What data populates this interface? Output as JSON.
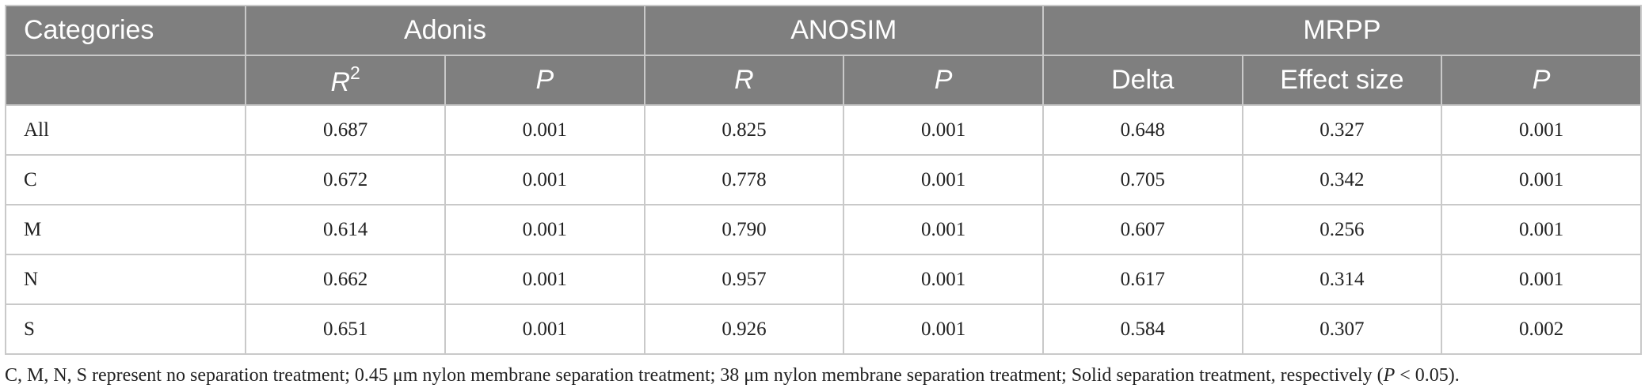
{
  "table": {
    "group_headers": {
      "categories": "Categories",
      "adonis": "Adonis",
      "anosim": "ANOSIM",
      "mrpp": "MRPP"
    },
    "sub_headers": {
      "adonis_r2_base": "R",
      "adonis_r2_sup": "2",
      "adonis_p": "P",
      "anosim_r": "R",
      "anosim_p": "P",
      "mrpp_delta": "Delta",
      "mrpp_effect": "Effect size",
      "mrpp_p": "P"
    },
    "rows": [
      {
        "category": "All",
        "adonis_r2": "0.687",
        "adonis_p": "0.001",
        "anosim_r": "0.825",
        "anosim_p": "0.001",
        "mrpp_delta": "0.648",
        "mrpp_effect": "0.327",
        "mrpp_p": "0.001"
      },
      {
        "category": "C",
        "adonis_r2": "0.672",
        "adonis_p": "0.001",
        "anosim_r": "0.778",
        "anosim_p": "0.001",
        "mrpp_delta": "0.705",
        "mrpp_effect": "0.342",
        "mrpp_p": "0.001"
      },
      {
        "category": "M",
        "adonis_r2": "0.614",
        "adonis_p": "0.001",
        "anosim_r": "0.790",
        "anosim_p": "0.001",
        "mrpp_delta": "0.607",
        "mrpp_effect": "0.256",
        "mrpp_p": "0.001"
      },
      {
        "category": "N",
        "adonis_r2": "0.662",
        "adonis_p": "0.001",
        "anosim_r": "0.957",
        "anosim_p": "0.001",
        "mrpp_delta": "0.617",
        "mrpp_effect": "0.314",
        "mrpp_p": "0.001"
      },
      {
        "category": "S",
        "adonis_r2": "0.651",
        "adonis_p": "0.001",
        "anosim_r": "0.926",
        "anosim_p": "0.001",
        "mrpp_delta": "0.584",
        "mrpp_effect": "0.307",
        "mrpp_p": "0.002"
      }
    ]
  },
  "footnote": {
    "text": "C, M, N, S represent no separation treatment; 0.45 μm nylon membrane separation treatment; 38 μm nylon membrane separation treatment; Solid separation treatment, respectively (",
    "p_symbol": "P",
    "p_condition": " < 0.05)."
  },
  "colors": {
    "header_bg": "#7f7f7f",
    "header_text": "#ffffff",
    "border": "#c9c9c9",
    "body_text": "#222222"
  }
}
